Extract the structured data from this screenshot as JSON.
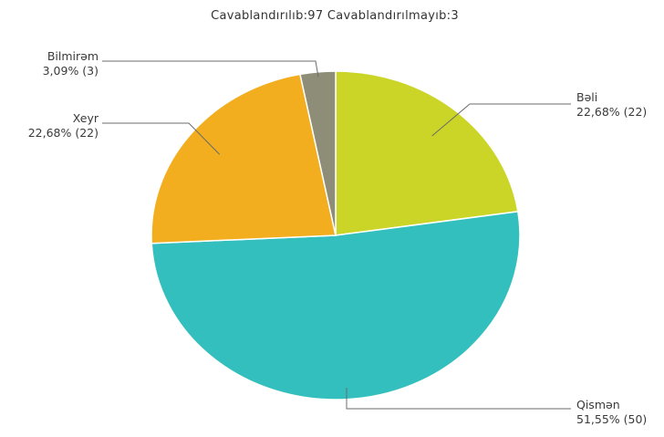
{
  "chart_data": {
    "type": "pie",
    "title": "Cavablandırılıb:97  Cavablandırılmayıb:3",
    "slices": [
      {
        "name": "Bəli",
        "value": 22,
        "percent_label": "22,68% (22)",
        "color": "#cbd527"
      },
      {
        "name": "Qismən",
        "value": 50,
        "percent_label": "51,55% (50)",
        "color": "#33bfbd"
      },
      {
        "name": "Xeyr",
        "value": 22,
        "percent_label": "22,68% (22)",
        "color": "#f2ae1e"
      },
      {
        "name": "Bilmirəm",
        "value": 3,
        "percent_label": "3,09% (3)",
        "color": "#8d8d78"
      }
    ]
  }
}
